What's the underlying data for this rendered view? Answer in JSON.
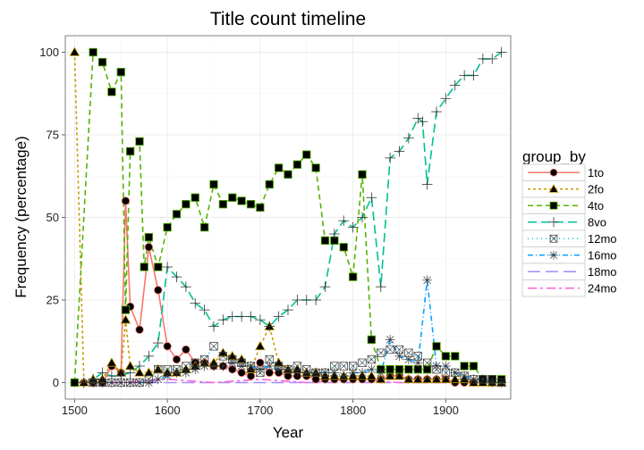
{
  "chart_data": {
    "type": "line",
    "title": "Title count timeline",
    "xlabel": "Year",
    "ylabel": "Frequency (percentage)",
    "xlim": [
      1490,
      1970
    ],
    "ylim": [
      -5,
      105
    ],
    "xticks": [
      1500,
      1600,
      1700,
      1800,
      1900
    ],
    "yticks": [
      0,
      25,
      50,
      75,
      100
    ],
    "grid": true,
    "legend_title": "group_by",
    "legend_position": "right",
    "series": [
      {
        "name": "1to",
        "color": "#F8766D",
        "dash": "",
        "marker": "dot",
        "x": [
          1500,
          1510,
          1520,
          1530,
          1540,
          1550,
          1555,
          1560,
          1570,
          1580,
          1590,
          1600,
          1610,
          1620,
          1630,
          1640,
          1650,
          1660,
          1670,
          1680,
          1690,
          1700,
          1710,
          1720,
          1730,
          1740,
          1750,
          1760,
          1770,
          1780,
          1790,
          1800,
          1810,
          1820,
          1830,
          1840,
          1850,
          1860,
          1870,
          1880,
          1890,
          1900,
          1910,
          1920,
          1930,
          1940,
          1950,
          1960
        ],
        "y": [
          0,
          0,
          0,
          0,
          5,
          3,
          55,
          23,
          16,
          41,
          28,
          11,
          7,
          10,
          6,
          6,
          5,
          5,
          4,
          3,
          2,
          6,
          3,
          3,
          2,
          2,
          2,
          1,
          1,
          1,
          1,
          1,
          1,
          1,
          1,
          2,
          2,
          1,
          1,
          1,
          1,
          1,
          0,
          0,
          0,
          0,
          0,
          0
        ]
      },
      {
        "name": "2fo",
        "color": "#C49A00",
        "dash": "3,3",
        "marker": "triangle",
        "x": [
          1500,
          1510,
          1520,
          1530,
          1540,
          1550,
          1555,
          1560,
          1570,
          1580,
          1590,
          1600,
          1610,
          1620,
          1630,
          1640,
          1650,
          1660,
          1670,
          1680,
          1690,
          1700,
          1710,
          1720,
          1730,
          1740,
          1750,
          1760,
          1770,
          1780,
          1790,
          1800,
          1810,
          1820,
          1830,
          1840,
          1850,
          1860,
          1870,
          1880,
          1890,
          1900,
          1910,
          1920,
          1930,
          1940,
          1950,
          1960
        ],
        "y": [
          100,
          0,
          1,
          1,
          6,
          3,
          19,
          5,
          3,
          3,
          4,
          3,
          3,
          4,
          5,
          6,
          6,
          9,
          8,
          7,
          4,
          11,
          17,
          6,
          4,
          4,
          3,
          3,
          2,
          2,
          2,
          2,
          2,
          2,
          1,
          2,
          2,
          1,
          1,
          1,
          1,
          1,
          1,
          1,
          0,
          0,
          0,
          0
        ]
      },
      {
        "name": "4to",
        "color": "#53B400",
        "dash": "6,4",
        "marker": "square",
        "x": [
          1500,
          1520,
          1530,
          1540,
          1550,
          1555,
          1560,
          1570,
          1575,
          1580,
          1590,
          1600,
          1610,
          1620,
          1630,
          1640,
          1650,
          1660,
          1670,
          1680,
          1690,
          1700,
          1710,
          1720,
          1730,
          1740,
          1750,
          1760,
          1770,
          1780,
          1790,
          1800,
          1810,
          1820,
          1830,
          1840,
          1850,
          1860,
          1870,
          1880,
          1890,
          1900,
          1910,
          1920,
          1930,
          1940,
          1950,
          1960
        ],
        "y": [
          0,
          100,
          97,
          88,
          94,
          22,
          70,
          73,
          35,
          44,
          35,
          47,
          51,
          54,
          56,
          47,
          60,
          54,
          56,
          55,
          54,
          53,
          60,
          65,
          63,
          66,
          69,
          65,
          43,
          43,
          41,
          32,
          63,
          13,
          4,
          4,
          4,
          4,
          4,
          4,
          11,
          8,
          8,
          5,
          5,
          1,
          1,
          1
        ]
      },
      {
        "name": "8vo",
        "color": "#00C094",
        "dash": "10,5",
        "marker": "plus",
        "x": [
          1510,
          1520,
          1530,
          1540,
          1550,
          1560,
          1570,
          1580,
          1590,
          1600,
          1610,
          1620,
          1630,
          1640,
          1650,
          1660,
          1670,
          1680,
          1690,
          1700,
          1710,
          1720,
          1730,
          1740,
          1750,
          1760,
          1770,
          1780,
          1790,
          1800,
          1810,
          1820,
          1830,
          1840,
          1850,
          1860,
          1870,
          1875,
          1880,
          1890,
          1900,
          1910,
          1920,
          1930,
          1940,
          1950,
          1960
        ],
        "y": [
          0,
          1,
          3,
          2,
          2,
          3,
          5,
          8,
          12,
          35,
          32,
          29,
          24,
          22,
          17,
          19,
          20,
          20,
          20,
          19,
          17,
          20,
          22,
          25,
          25,
          25,
          29,
          45,
          49,
          47,
          50,
          56,
          29,
          68,
          70,
          74,
          80,
          79,
          60,
          82,
          86,
          90,
          93,
          93,
          98,
          98,
          100
        ]
      },
      {
        "name": "12mo",
        "color": "#00B6EB",
        "dash": "1,4",
        "marker": "boxx",
        "x": [
          1520,
          1530,
          1540,
          1550,
          1560,
          1570,
          1580,
          1590,
          1600,
          1610,
          1620,
          1630,
          1640,
          1650,
          1660,
          1670,
          1680,
          1690,
          1700,
          1710,
          1720,
          1730,
          1740,
          1750,
          1760,
          1770,
          1780,
          1790,
          1800,
          1810,
          1820,
          1830,
          1840,
          1850,
          1860,
          1870,
          1880,
          1890,
          1900,
          1910,
          1920,
          1930,
          1940,
          1950,
          1960
        ],
        "y": [
          0,
          0,
          0,
          0,
          0,
          0,
          1,
          4,
          4,
          4,
          5,
          6,
          7,
          11,
          8,
          7,
          6,
          5,
          3,
          7,
          5,
          4,
          5,
          4,
          3,
          3,
          5,
          5,
          5,
          6,
          7,
          9,
          10,
          10,
          9,
          8,
          6,
          4,
          3,
          3,
          2,
          1,
          1,
          1,
          0
        ]
      },
      {
        "name": "16mo",
        "color": "#06A4FF",
        "dash": "6,3,1,3",
        "marker": "star",
        "x": [
          1520,
          1530,
          1540,
          1550,
          1560,
          1570,
          1580,
          1590,
          1600,
          1610,
          1620,
          1630,
          1640,
          1650,
          1660,
          1670,
          1680,
          1690,
          1700,
          1710,
          1720,
          1730,
          1740,
          1750,
          1760,
          1770,
          1780,
          1790,
          1800,
          1810,
          1820,
          1830,
          1840,
          1850,
          1860,
          1870,
          1880,
          1890,
          1900,
          1910,
          1920,
          1930,
          1940,
          1950,
          1960
        ],
        "y": [
          0,
          0,
          0,
          0,
          0,
          0,
          0,
          1,
          2,
          3,
          3,
          4,
          5,
          5,
          5,
          6,
          5,
          5,
          4,
          5,
          4,
          4,
          3,
          3,
          3,
          3,
          3,
          2,
          3,
          3,
          4,
          3,
          13,
          8,
          7,
          6,
          31,
          5,
          5,
          3,
          2,
          1,
          1,
          0,
          0
        ]
      },
      {
        "name": "18mo",
        "color": "#A58AFF",
        "dash": "14,6",
        "marker": "none",
        "x": [
          1500,
          1550,
          1600,
          1650,
          1700,
          1750,
          1800,
          1850,
          1900,
          1960
        ],
        "y": [
          0,
          0,
          0,
          0,
          0,
          0,
          0,
          0,
          0,
          0
        ]
      },
      {
        "name": "24mo",
        "color": "#FB61D7",
        "dash": "10,4,3,4",
        "marker": "none",
        "x": [
          1500,
          1550,
          1600,
          1650,
          1700,
          1750,
          1800,
          1850,
          1900,
          1960
        ],
        "y": [
          0,
          0,
          1,
          0,
          1,
          0,
          1,
          0,
          0,
          0
        ]
      }
    ]
  }
}
